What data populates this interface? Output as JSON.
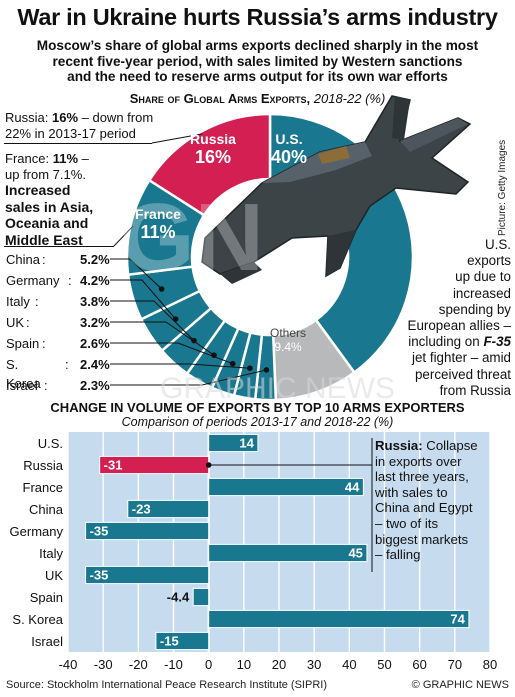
{
  "title": "War in Ukraine hurts Russia’s arms industry",
  "subtitle_lines": [
    "Moscow’s share of global arms exports declined sharply in the most",
    "recent five-year period, with sales limited by Western sanctions",
    "and the need to reserve arms output for its own war efforts"
  ],
  "pie_section": {
    "heading": "Share of Global Arms Exports,",
    "period": "2018-22 (%)"
  },
  "bar_section": {
    "heading": "CHANGE IN VOLUME OF EXPORTS BY TOP 10 ARMS EXPORTERS",
    "subheading": "Comparison of periods 2013-17 and 2018-22 (%)"
  },
  "notes": {
    "russia_name": "Russia:",
    "russia_value": "16%",
    "russia_rest_1": " – down from",
    "russia_rest_2": "22% in 2013-17 period",
    "france_name": "France:",
    "france_value": "11%",
    "france_rest_1": " –",
    "france_rest_2": "up from 7.1%.",
    "france_bold_1": "Increased",
    "france_bold_2": "sales in Asia,",
    "france_bold_3": "Oceania and",
    "france_bold_4": "Middle East",
    "us_lines": [
      "U.S.",
      "exports",
      "up due to",
      "increased",
      "spending by",
      "European allies –",
      "including on",
      "jet fighter – amid",
      "perceived threat",
      "from Russia"
    ],
    "us_jet": "F-35",
    "russia_bar_name": "Russia:",
    "russia_bar_lines": [
      " Collapse",
      "in exports over",
      "last three years,",
      "with sales to",
      "China and Egypt",
      "– two of its",
      "biggest markets",
      "– falling"
    ]
  },
  "photo_credit": "Picture: Getty Images",
  "watermark": "GRAPHIC NEWS",
  "footer": {
    "source": "Source: Stockholm International Peace Research Institute (SIPRI)",
    "copyright": "© GRAPHIC NEWS"
  },
  "colors": {
    "russia": "#d41f52",
    "teal": "#19788f",
    "others": "#b7b9bb",
    "bar_panel": "#c7dbef",
    "text": "#111111"
  },
  "chart_data": [
    {
      "type": "pie",
      "title": "Share of Global Arms Exports, 2018-22 (%)",
      "slices": [
        {
          "label": "U.S.",
          "value": 40,
          "display": "40%",
          "color": "#19788f"
        },
        {
          "label": "Others",
          "value": 9.4,
          "display": "9.4%",
          "color": "#b7b9bb"
        },
        {
          "label": "Israel",
          "value": 2.3,
          "display": "2.3%",
          "color": "#19788f"
        },
        {
          "label": "S. Korea",
          "value": 2.4,
          "display": "2.4%",
          "color": "#19788f"
        },
        {
          "label": "Spain",
          "value": 2.6,
          "display": "2.6%",
          "color": "#19788f"
        },
        {
          "label": "UK",
          "value": 3.2,
          "display": "3.2%",
          "color": "#19788f"
        },
        {
          "label": "Italy",
          "value": 3.8,
          "display": "3.8%",
          "color": "#19788f"
        },
        {
          "label": "Germany",
          "value": 4.2,
          "display": "4.2%",
          "color": "#19788f"
        },
        {
          "label": "China",
          "value": 5.2,
          "display": "5.2%",
          "color": "#19788f"
        },
        {
          "label": "France",
          "value": 11,
          "display": "11%",
          "color": "#19788f"
        },
        {
          "label": "Russia",
          "value": 16,
          "display": "16%",
          "color": "#d41f52"
        }
      ]
    },
    {
      "type": "bar",
      "orientation": "horizontal",
      "title": "CHANGE IN VOLUME OF EXPORTS BY TOP 10 ARMS EXPORTERS",
      "subtitle": "Comparison of periods 2013-17 and 2018-22 (%)",
      "categories": [
        "U.S.",
        "Russia",
        "France",
        "China",
        "Germany",
        "Italy",
        "UK",
        "Spain",
        "S. Korea",
        "Israel"
      ],
      "values": [
        14,
        -31,
        44,
        -23,
        -35,
        45,
        -35,
        -4.4,
        74,
        -15
      ],
      "highlight": "Russia",
      "xlim": [
        -40,
        80
      ],
      "xticks": [
        -40,
        -30,
        -20,
        -10,
        0,
        10,
        20,
        30,
        40,
        50,
        60,
        70,
        80
      ],
      "grid": true
    }
  ]
}
